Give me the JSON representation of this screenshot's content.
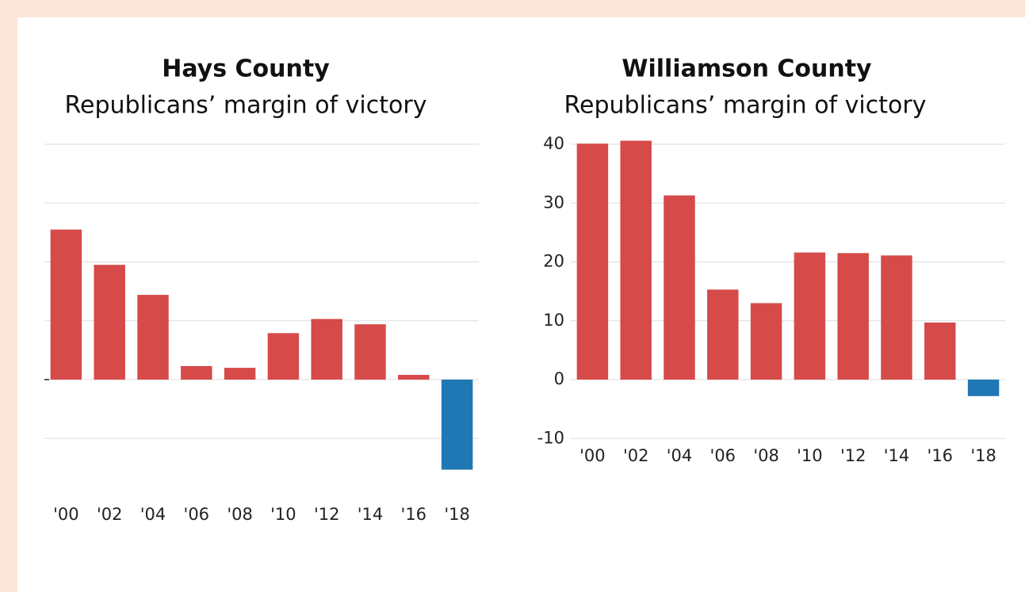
{
  "chart_data": [
    {
      "type": "bar",
      "title": "Hays County",
      "subtitle": "Republicans’ margin of victory",
      "categories": [
        "'00",
        "'02",
        "'04",
        "'06",
        "'08",
        "'10",
        "'12",
        "'14",
        "'16",
        "'18"
      ],
      "values": [
        25.5,
        19.5,
        14.4,
        2.3,
        2.0,
        7.9,
        10.3,
        9.4,
        0.8,
        -15.3
      ],
      "colors": {
        "positive": "#d64a4a",
        "negative": "#1f77b4"
      },
      "ylim": [
        -20,
        40
      ],
      "yticks": [
        -10,
        0,
        10,
        20,
        30,
        40
      ],
      "grid": true,
      "ytick_labels": false
    },
    {
      "type": "bar",
      "title": "Williamson County",
      "subtitle": "Republicans’ margin of victory",
      "categories": [
        "'00",
        "'02",
        "'04",
        "'06",
        "'08",
        "'10",
        "'12",
        "'14",
        "'16",
        "'18"
      ],
      "values": [
        40.1,
        40.6,
        31.3,
        15.3,
        13.0,
        21.6,
        21.5,
        21.1,
        9.7,
        -2.8
      ],
      "colors": {
        "positive": "#d64a4a",
        "negative": "#1f77b4"
      },
      "ylim": [
        -10,
        40
      ],
      "yticks": [
        -10,
        0,
        10,
        20,
        30,
        40
      ],
      "grid": true,
      "ytick_labels": true
    }
  ]
}
